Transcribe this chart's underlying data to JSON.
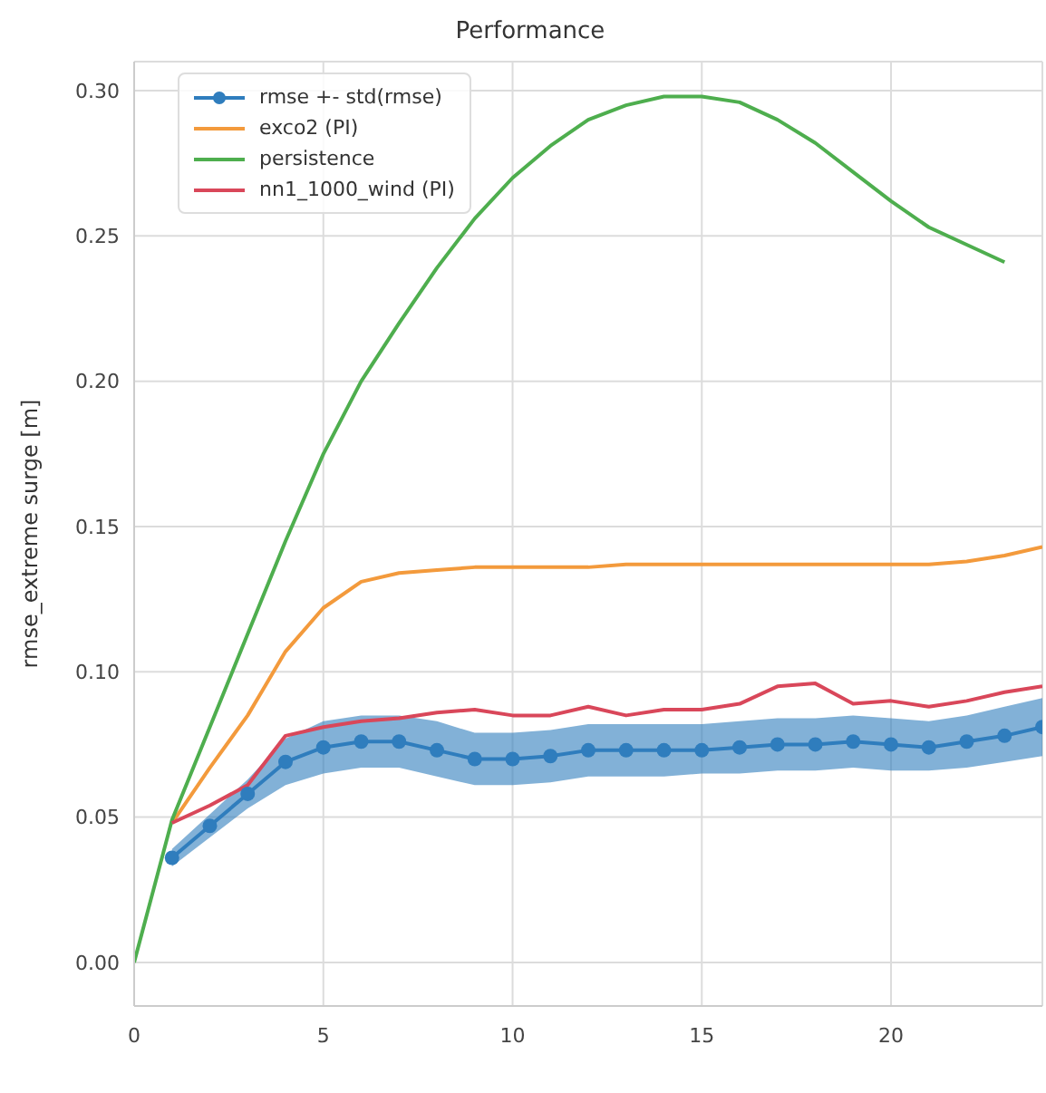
{
  "chart_data": {
    "type": "line",
    "title": "Performance",
    "ylabel": "rmse_extreme surge [m]",
    "xlim": [
      0,
      24
    ],
    "ylim": [
      -0.015,
      0.31
    ],
    "xticks": [
      0,
      5,
      10,
      15,
      20
    ],
    "yticks": [
      {
        "value": 0,
        "label": "0.00"
      },
      {
        "value": 0.05,
        "label": "0.05"
      },
      {
        "value": 0.1,
        "label": "0.10"
      },
      {
        "value": 0.15,
        "label": "0.15"
      },
      {
        "value": 0.2,
        "label": "0.20"
      },
      {
        "value": 0.25,
        "label": "0.25"
      },
      {
        "value": 0.3,
        "label": "0.30"
      }
    ],
    "grid": true,
    "legend": "top left",
    "line_style": "solid",
    "series": [
      {
        "name": "rmse +- std(rmse)",
        "color": "#2f7dbd",
        "marker": "circle",
        "x": [
          1,
          2,
          3,
          4,
          5,
          6,
          7,
          8,
          9,
          10,
          11,
          12,
          13,
          14,
          15,
          16,
          17,
          18,
          19,
          20,
          21,
          22,
          23,
          24
        ],
        "values": [
          0.036,
          0.047,
          0.058,
          0.069,
          0.074,
          0.076,
          0.076,
          0.073,
          0.07,
          0.07,
          0.071,
          0.073,
          0.073,
          0.073,
          0.073,
          0.074,
          0.075,
          0.075,
          0.076,
          0.075,
          0.074,
          0.076,
          0.078,
          0.081
        ],
        "lower": [
          0.033,
          0.043,
          0.053,
          0.061,
          0.065,
          0.067,
          0.067,
          0.064,
          0.061,
          0.061,
          0.062,
          0.064,
          0.064,
          0.064,
          0.065,
          0.065,
          0.066,
          0.066,
          0.067,
          0.066,
          0.066,
          0.067,
          0.069,
          0.071
        ],
        "upper": [
          0.039,
          0.051,
          0.063,
          0.077,
          0.083,
          0.085,
          0.085,
          0.083,
          0.079,
          0.079,
          0.08,
          0.082,
          0.082,
          0.082,
          0.082,
          0.083,
          0.084,
          0.084,
          0.085,
          0.084,
          0.083,
          0.085,
          0.088,
          0.091
        ]
      },
      {
        "name": "exco2 (PI)",
        "color": "#f39a3c",
        "x": [
          1,
          2,
          3,
          4,
          5,
          6,
          7,
          8,
          9,
          10,
          11,
          12,
          13,
          14,
          15,
          16,
          17,
          18,
          19,
          20,
          21,
          22,
          23,
          24
        ],
        "values": [
          0.048,
          0.067,
          0.085,
          0.107,
          0.122,
          0.131,
          0.134,
          0.135,
          0.136,
          0.136,
          0.136,
          0.136,
          0.137,
          0.137,
          0.137,
          0.137,
          0.137,
          0.137,
          0.137,
          0.137,
          0.137,
          0.138,
          0.14,
          0.143
        ]
      },
      {
        "name": "persistence",
        "color": "#4eae4e",
        "x": [
          0,
          1,
          2,
          3,
          4,
          5,
          6,
          7,
          8,
          9,
          10,
          11,
          12,
          13,
          14,
          15,
          16,
          17,
          18,
          19,
          20,
          21,
          22,
          23
        ],
        "values": [
          0,
          0.049,
          0.081,
          0.113,
          0.145,
          0.175,
          0.2,
          0.22,
          0.239,
          0.256,
          0.27,
          0.281,
          0.29,
          0.295,
          0.298,
          0.298,
          0.296,
          0.29,
          0.282,
          0.272,
          0.262,
          0.253,
          0.247,
          0.241
        ]
      },
      {
        "name": "nn1_1000_wind (PI)",
        "color": "#d9475a",
        "x": [
          1,
          2,
          3,
          4,
          5,
          6,
          7,
          8,
          9,
          10,
          11,
          12,
          13,
          14,
          15,
          16,
          17,
          18,
          19,
          20,
          21,
          22,
          23,
          24
        ],
        "values": [
          0.048,
          0.054,
          0.061,
          0.078,
          0.081,
          0.083,
          0.084,
          0.086,
          0.087,
          0.085,
          0.085,
          0.088,
          0.085,
          0.087,
          0.087,
          0.089,
          0.095,
          0.096,
          0.089,
          0.09,
          0.088,
          0.09,
          0.093,
          0.095
        ]
      }
    ]
  }
}
